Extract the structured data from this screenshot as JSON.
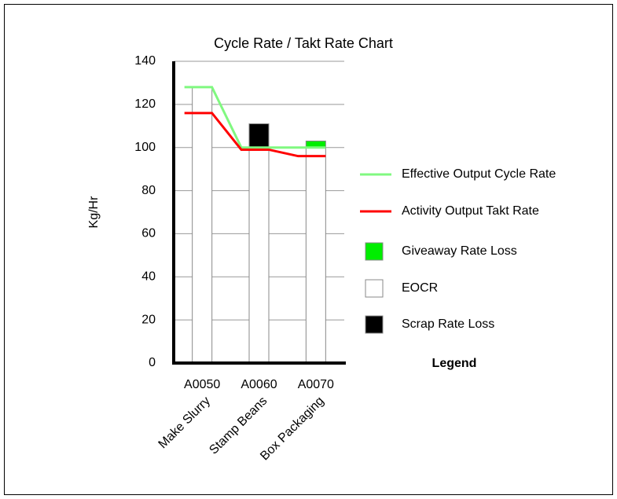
{
  "chart_data": {
    "type": "bar",
    "title": "Cycle Rate / Takt Rate Chart",
    "y_label": "Kg/Hr",
    "categories": [
      "A0050",
      "A0060",
      "A0070"
    ],
    "category_descriptions": [
      "Make Slurry",
      "Stamp Beans",
      "Box Packaging"
    ],
    "ylim": [
      0,
      140
    ],
    "yticks": [
      0,
      20,
      40,
      60,
      80,
      100,
      120,
      140
    ],
    "grid": true,
    "stacked": true,
    "legend_title": "Legend",
    "legend_position": "right",
    "series": [
      {
        "name": "Effective Output Cycle Rate",
        "type": "line",
        "color": "#80f880",
        "values": [
          128,
          100,
          100
        ]
      },
      {
        "name": "Activity Output Takt Rate",
        "type": "line",
        "color": "#ff0000",
        "values": [
          116,
          99,
          96
        ]
      },
      {
        "name": "Giveaway Rate Loss",
        "type": "bar",
        "color": "#00ee00",
        "values": [
          0,
          0,
          3
        ]
      },
      {
        "name": "EOCR",
        "type": "bar",
        "color": "#ffffff",
        "values": [
          128,
          100,
          100
        ]
      },
      {
        "name": "Scrap Rate Loss",
        "type": "bar",
        "color": "#000000",
        "values": [
          0,
          11,
          0
        ]
      }
    ]
  }
}
